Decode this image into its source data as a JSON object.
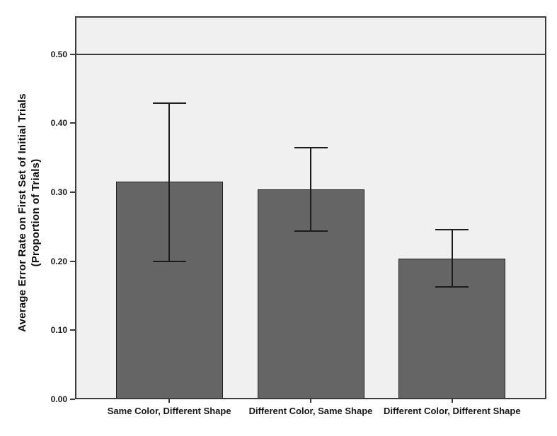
{
  "chart_data": {
    "type": "bar",
    "categories": [
      "Same Color, Different Shape",
      "Different Color, Same Shape",
      "Different Color, Different Shape"
    ],
    "values": [
      0.315,
      0.304,
      0.204
    ],
    "error_bars": [
      {
        "low": 0.2,
        "high": 0.429
      },
      {
        "low": 0.244,
        "high": 0.365
      },
      {
        "low": 0.163,
        "high": 0.246
      }
    ],
    "ylabel_lines": [
      "Average Error Rate on First Set of Initial Trials",
      "(Proportion of Trials)"
    ],
    "yticks": [
      0,
      0.1,
      0.2,
      0.3,
      0.4,
      0.5
    ],
    "ytick_labels": [
      "0.00",
      "0.10",
      "0.20",
      "0.30",
      "0.40",
      "0.50"
    ],
    "ylim": [
      0,
      0.555
    ],
    "reference_line": 0.5,
    "grid": "off",
    "legend": "none",
    "colors": {
      "bar_fill": "#656565",
      "bar_border": "#1f1f1f",
      "error_bar": "#1c1c1c",
      "plot_background": "#f0f0f0",
      "frame": "#3d3d3d",
      "reference_line": "#3d3d3d",
      "tick": "#3d3d3d",
      "text": "#161616"
    }
  }
}
